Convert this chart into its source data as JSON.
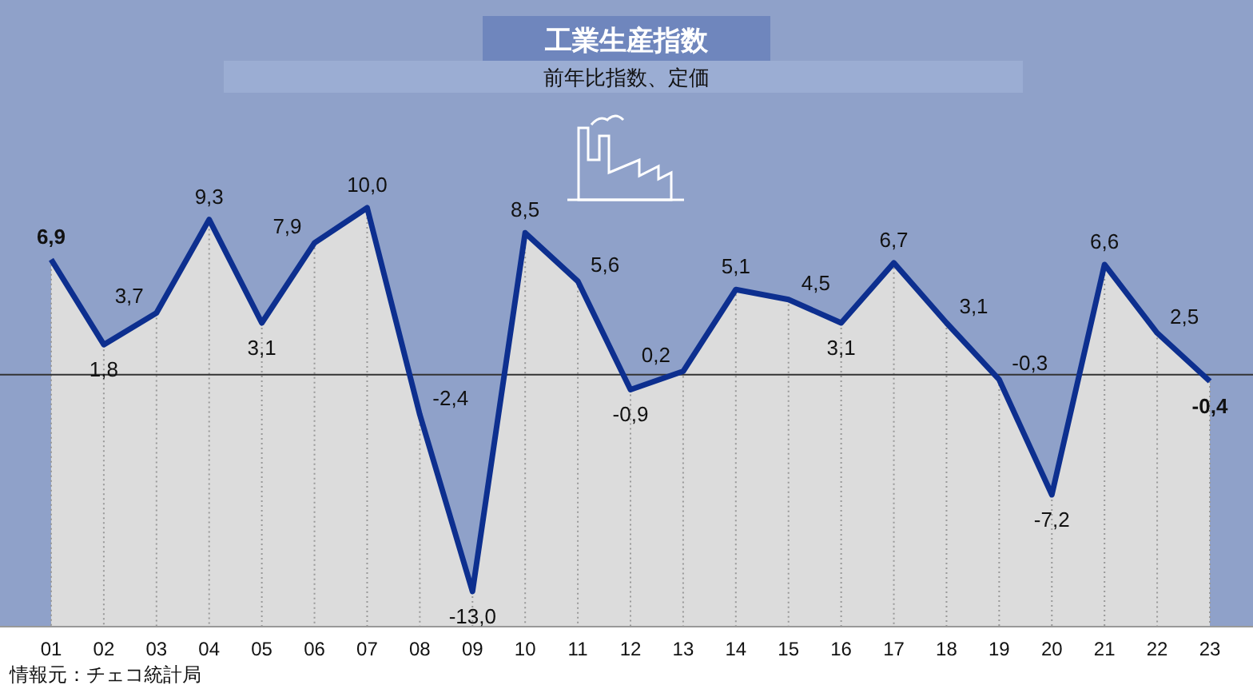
{
  "chart_data": {
    "type": "area",
    "title": "工業生産指数",
    "subtitle": "前年比指数、定価",
    "categories": [
      "01",
      "02",
      "03",
      "04",
      "05",
      "06",
      "07",
      "08",
      "09",
      "10",
      "11",
      "12",
      "13",
      "14",
      "15",
      "16",
      "17",
      "18",
      "19",
      "20",
      "21",
      "22",
      "23"
    ],
    "series": [
      {
        "color": "#0d2f8f",
        "values": [
          6.9,
          1.8,
          3.7,
          9.3,
          3.1,
          7.9,
          10.0,
          -2.4,
          -13.0,
          8.5,
          5.6,
          -0.9,
          0.2,
          5.1,
          4.5,
          3.1,
          6.7,
          3.1,
          -0.3,
          -7.2,
          6.6,
          2.5,
          -0.4
        ],
        "value_labels": [
          "6,9",
          "1,8",
          "3,7",
          "9,3",
          "3,1",
          "7,9",
          "10,0",
          "-2,4",
          "-13,0",
          "8,5",
          "5,6",
          "-0,9",
          "0,2",
          "5,1",
          "4,5",
          "3,1",
          "6,7",
          "3,1",
          "-0,3",
          "-7,2",
          "6,6",
          "2,5",
          "-0,4"
        ]
      }
    ],
    "ref_lines": [
      {
        "axis": "y",
        "value": 0,
        "color": "#333333"
      }
    ],
    "grid": "x",
    "line_style": "solid",
    "annotations": [
      "情報元：チェコ統計局"
    ]
  }
}
